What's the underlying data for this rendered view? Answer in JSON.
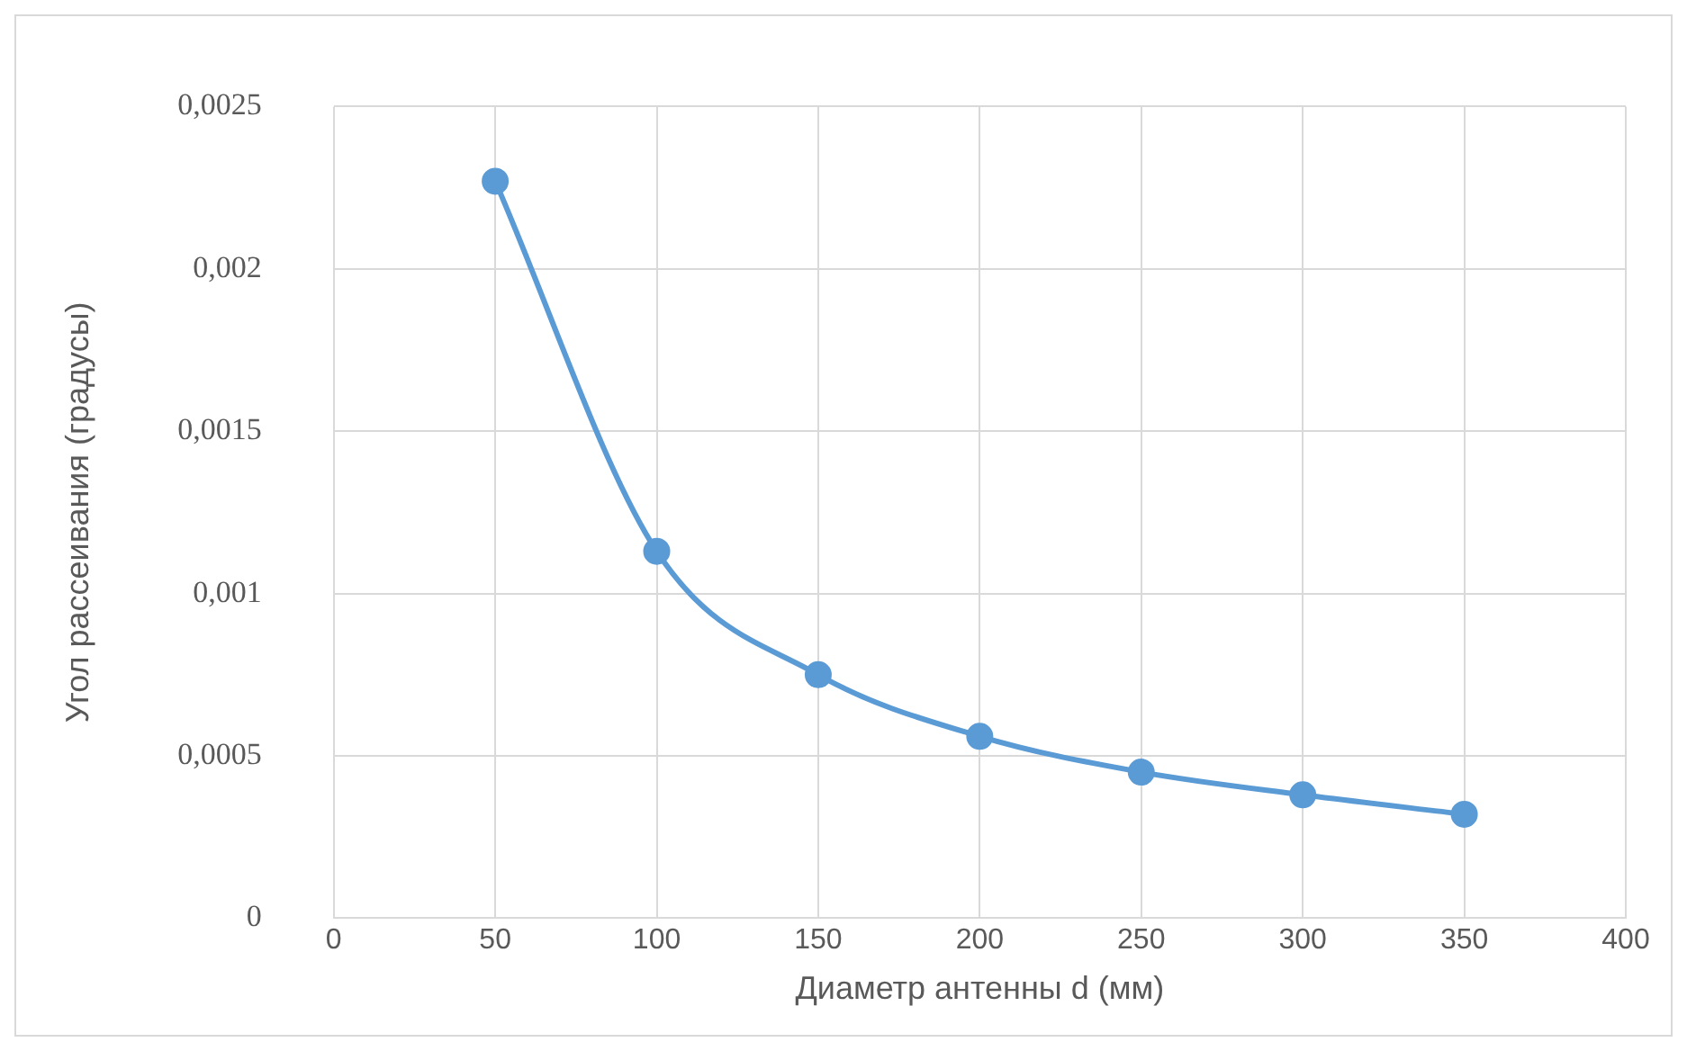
{
  "chart_data": {
    "type": "line",
    "xlabel": "Диаметр антенны d (мм)",
    "ylabel": "Угол рассеивания (градусы)",
    "x": [
      50,
      100,
      150,
      200,
      250,
      300,
      350
    ],
    "series": [
      {
        "color": "#5b9bd5",
        "values": [
          0.00227,
          0.00113,
          0.00075,
          0.00056,
          0.00045,
          0.00038,
          0.00032
        ]
      }
    ],
    "xlim": [
      0,
      400
    ],
    "xticks": [
      0,
      50,
      100,
      150,
      200,
      250,
      300,
      350,
      400
    ],
    "ylim": [
      0,
      0.0025
    ],
    "yticks": [
      {
        "value": 0,
        "label": "0"
      },
      {
        "value": 0.0005,
        "label": "0,0005"
      },
      {
        "value": 0.001,
        "label": "0,001"
      },
      {
        "value": 0.0015,
        "label": "0,0015"
      },
      {
        "value": 0.002,
        "label": "0,002"
      },
      {
        "value": 0.0025,
        "label": "0,0025"
      }
    ],
    "grid": true,
    "marker": "circle",
    "line_style": "solid",
    "legend": false
  }
}
